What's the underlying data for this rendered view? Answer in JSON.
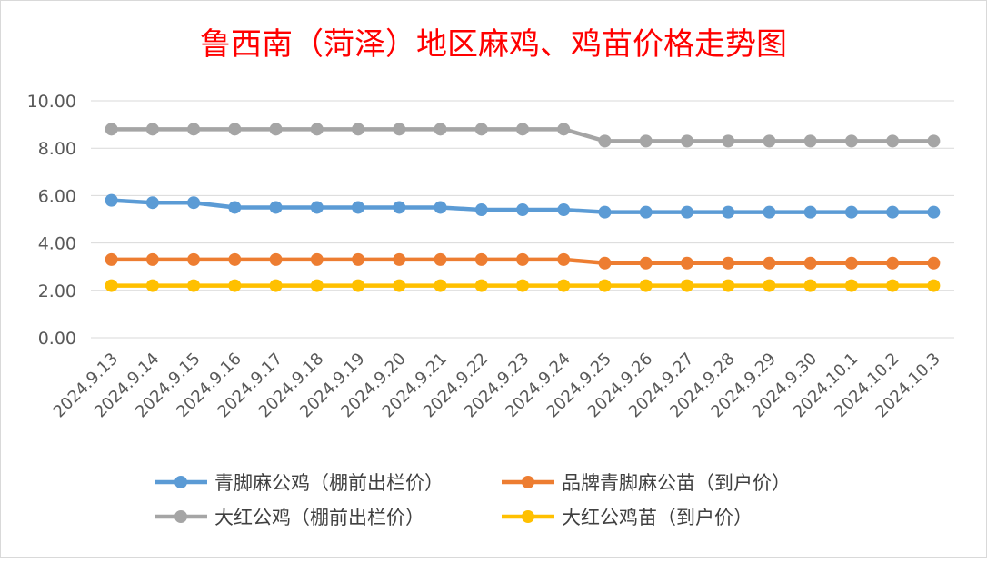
{
  "chart_data": {
    "type": "line",
    "title": "鲁西南（菏泽）地区麻鸡、鸡苗价格走势图",
    "xlabel": "",
    "ylabel": "",
    "ylim": [
      0,
      10
    ],
    "yticks": [
      "0.00",
      "2.00",
      "4.00",
      "6.00",
      "8.00",
      "10.00"
    ],
    "grid": true,
    "legend_position": "bottom",
    "categories": [
      "2024.9.13",
      "2024.9.14",
      "2024.9.15",
      "2024.9.16",
      "2024.9.17",
      "2024.9.18",
      "2024.9.19",
      "2024.9.20",
      "2024.9.21",
      "2024.9.22",
      "2024.9.23",
      "2024.9.24",
      "2024.9.25",
      "2024.9.26",
      "2024.9.27",
      "2024.9.28",
      "2024.9.29",
      "2024.9.30",
      "2024.10.1",
      "2024.10.2",
      "2024.10.3"
    ],
    "series": [
      {
        "name": "青脚麻公鸡（棚前出栏价）",
        "color": "#5B9BD5",
        "values": [
          5.8,
          5.7,
          5.7,
          5.5,
          5.5,
          5.5,
          5.5,
          5.5,
          5.5,
          5.4,
          5.4,
          5.4,
          5.3,
          5.3,
          5.3,
          5.3,
          5.3,
          5.3,
          5.3,
          5.3,
          5.3
        ]
      },
      {
        "name": "品牌青脚麻公苗（到户价）",
        "color": "#ED7D31",
        "values": [
          3.3,
          3.3,
          3.3,
          3.3,
          3.3,
          3.3,
          3.3,
          3.3,
          3.3,
          3.3,
          3.3,
          3.3,
          3.15,
          3.15,
          3.15,
          3.15,
          3.15,
          3.15,
          3.15,
          3.15,
          3.15
        ]
      },
      {
        "name": "大红公鸡（棚前出栏价）",
        "color": "#A5A5A5",
        "values": [
          8.8,
          8.8,
          8.8,
          8.8,
          8.8,
          8.8,
          8.8,
          8.8,
          8.8,
          8.8,
          8.8,
          8.8,
          8.3,
          8.3,
          8.3,
          8.3,
          8.3,
          8.3,
          8.3,
          8.3,
          8.3
        ]
      },
      {
        "name": "大红公鸡苗（到户价）",
        "color": "#FFC000",
        "values": [
          2.2,
          2.2,
          2.2,
          2.2,
          2.2,
          2.2,
          2.2,
          2.2,
          2.2,
          2.2,
          2.2,
          2.2,
          2.2,
          2.2,
          2.2,
          2.2,
          2.2,
          2.2,
          2.2,
          2.2,
          2.2
        ]
      }
    ],
    "title_color": "#FF0000"
  }
}
